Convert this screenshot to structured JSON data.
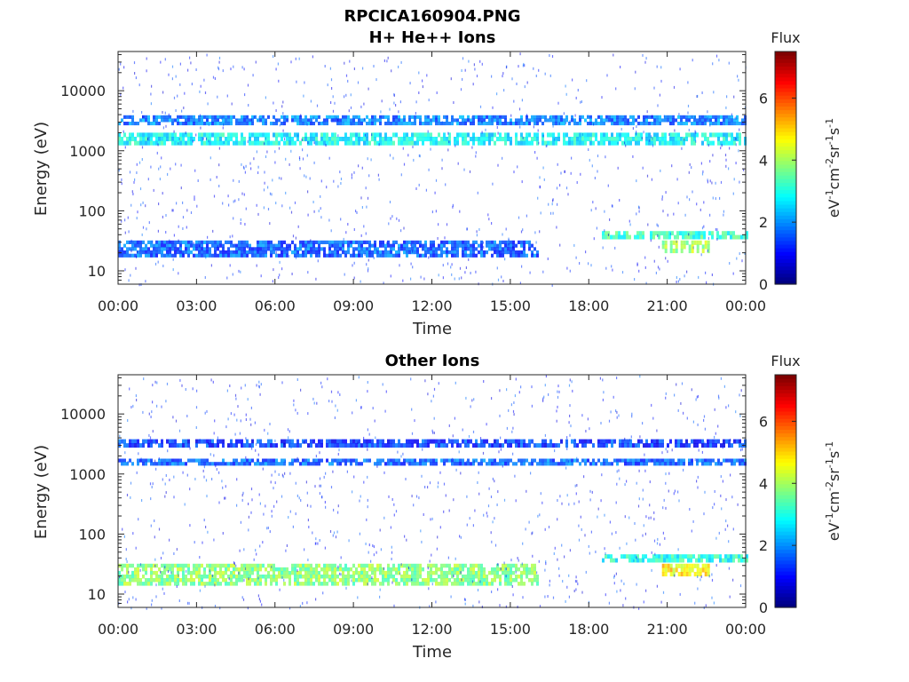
{
  "figure_title": "RPCICA160904.PNG",
  "chart_data": [
    {
      "type": "heatmap",
      "title": "H+ He++ Ions",
      "xlabel": "Time",
      "ylabel": "Energy (eV)",
      "x_ticks": [
        "00:00",
        "03:00",
        "06:00",
        "09:00",
        "12:00",
        "15:00",
        "18:00",
        "21:00",
        "00:00"
      ],
      "x_range_hours": [
        0,
        24
      ],
      "y_scale": "log",
      "y_range": [
        6,
        45000
      ],
      "y_ticks": [
        10,
        100,
        1000,
        10000
      ],
      "y_tick_labels": [
        "10",
        "100",
        "1000",
        "10000"
      ],
      "colorbar": {
        "title": "Flux",
        "unit_base": "eV",
        "unit_parts": [
          "-1",
          "cm",
          "-2",
          "sr",
          "-1",
          "s",
          "-1"
        ],
        "range": [
          0,
          7.5
        ],
        "ticks": [
          0,
          2,
          4,
          6
        ],
        "colormap": "jet"
      },
      "features": [
        {
          "band": "energy ~1600 eV",
          "energy": [
            1250,
            2000
          ],
          "time_hours": [
            0,
            24
          ],
          "flux": 2.8
        },
        {
          "band": "energy ~3200 eV",
          "energy": [
            2700,
            3900
          ],
          "time_hours": [
            0,
            24
          ],
          "flux": 1.8
        },
        {
          "band": "low energy 17-32 eV",
          "energy": [
            17,
            32
          ],
          "time_hours": [
            0,
            16
          ],
          "flux": 1.6
        },
        {
          "band": "low energy 35-45 eV",
          "energy": [
            34,
            46
          ],
          "time_hours": [
            18.5,
            24
          ],
          "flux": 3.2
        },
        {
          "band": "low energy 22-32 eV",
          "energy": [
            20,
            32
          ],
          "time_hours": [
            20.8,
            22.6
          ],
          "flux": 4.0
        }
      ]
    },
    {
      "type": "heatmap",
      "title": "Other Ions",
      "xlabel": "Time",
      "ylabel": "Energy (eV)",
      "x_ticks": [
        "00:00",
        "03:00",
        "06:00",
        "09:00",
        "12:00",
        "15:00",
        "18:00",
        "21:00",
        "00:00"
      ],
      "x_range_hours": [
        0,
        24
      ],
      "y_scale": "log",
      "y_range": [
        6,
        45000
      ],
      "y_ticks": [
        10,
        100,
        1000,
        10000
      ],
      "y_tick_labels": [
        "10",
        "100",
        "1000",
        "10000"
      ],
      "colorbar": {
        "title": "Flux",
        "unit_base": "eV",
        "unit_parts": [
          "-1",
          "cm",
          "-2",
          "sr",
          "-1",
          "s",
          "-1"
        ],
        "range": [
          0,
          7.5
        ],
        "ticks": [
          0,
          2,
          4,
          6
        ],
        "colormap": "jet"
      },
      "features": [
        {
          "band": "energy ~1600 eV",
          "energy": [
            1400,
            1800
          ],
          "time_hours": [
            0,
            24
          ],
          "flux": 1.6
        },
        {
          "band": "energy ~3200 eV",
          "energy": [
            2800,
            3800
          ],
          "time_hours": [
            0,
            24
          ],
          "flux": 1.3
        },
        {
          "band": "low energy 14-32 eV",
          "energy": [
            14,
            32
          ],
          "time_hours": [
            0,
            16
          ],
          "flux": 3.8
        },
        {
          "band": "low energy 35-45 eV",
          "energy": [
            34,
            46
          ],
          "time_hours": [
            18.5,
            24
          ],
          "flux": 3.0
        },
        {
          "band": "low energy 20-32 eV",
          "energy": [
            20,
            32
          ],
          "time_hours": [
            20.8,
            22.6
          ],
          "flux": 4.8
        }
      ]
    }
  ]
}
